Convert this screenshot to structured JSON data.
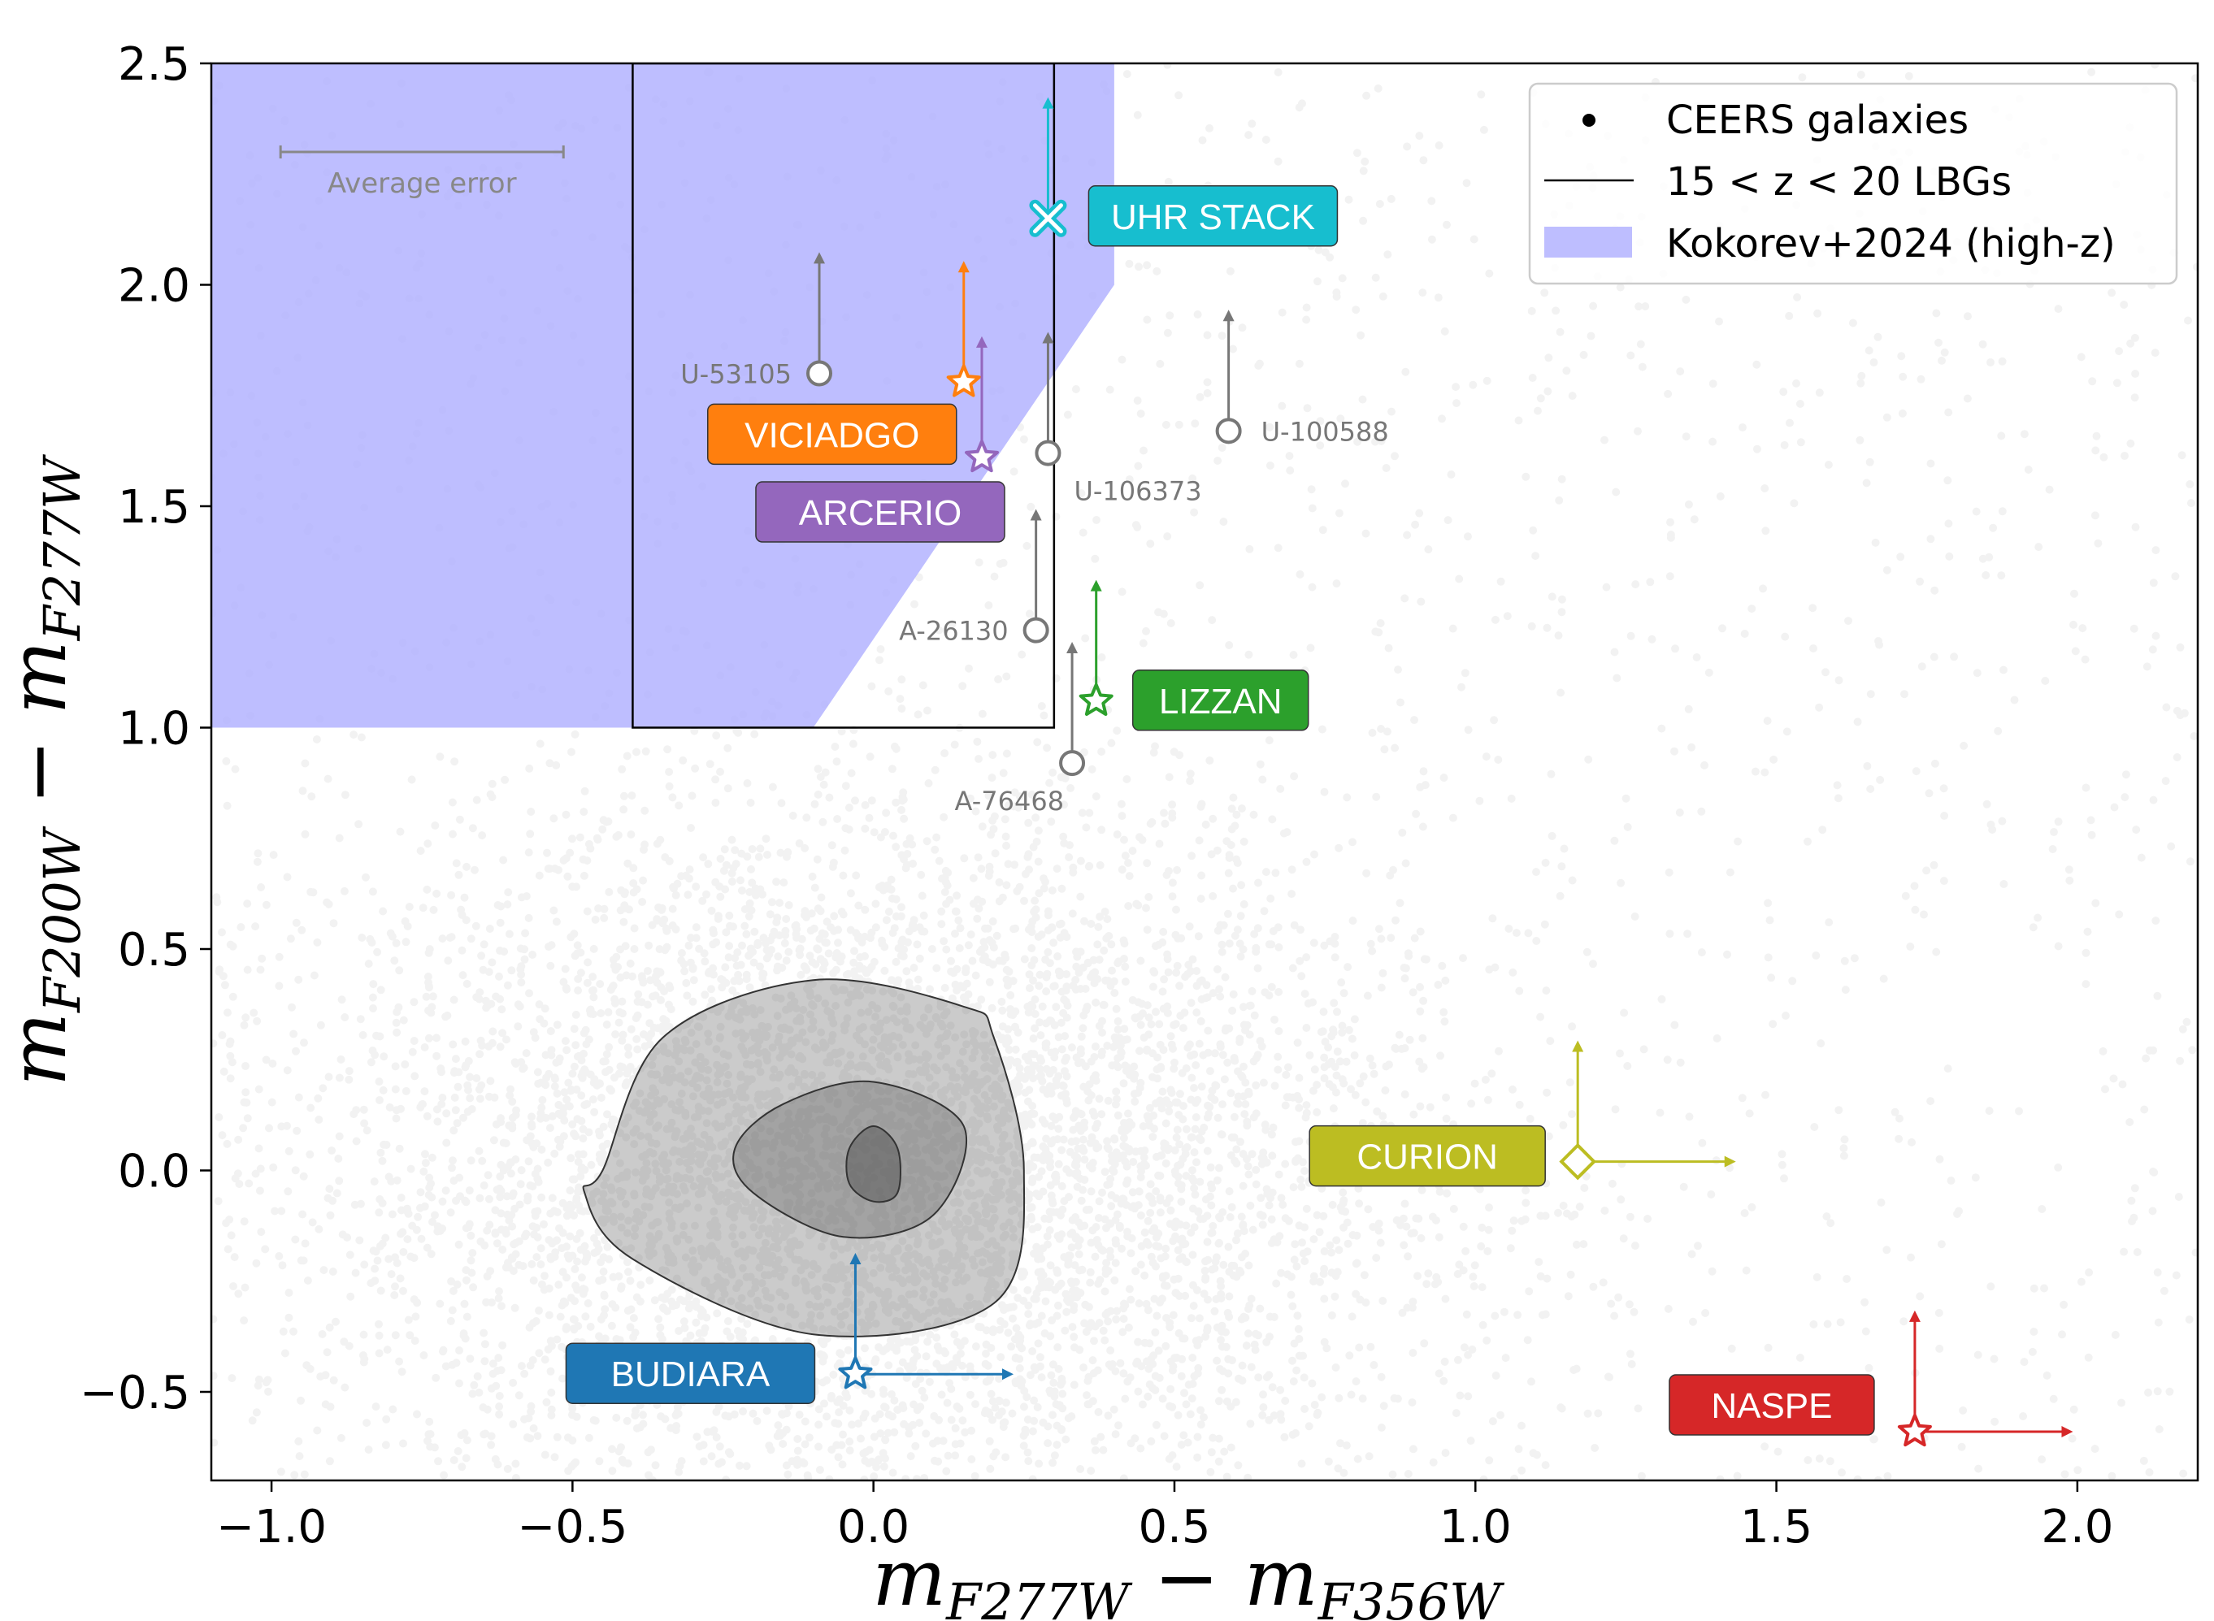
{
  "chart_data": {
    "type": "scatter",
    "title": "",
    "xlabel": {
      "base": "m",
      "sub1": "F277W",
      "minus": " − ",
      "base2": "m",
      "sub2": "F356W"
    },
    "ylabel": {
      "base": "m",
      "sub1": "F200W",
      "minus": " − ",
      "base2": "m",
      "sub2": "F277W"
    },
    "xlim": [
      -1.1,
      2.2
    ],
    "ylim": [
      -0.7,
      2.5
    ],
    "xticks": [
      -1.0,
      -0.5,
      0.0,
      0.5,
      1.0,
      1.5,
      2.0
    ],
    "xtick_labels": [
      "−1.0",
      "−0.5",
      "0.0",
      "0.5",
      "1.0",
      "1.5",
      "2.0"
    ],
    "yticks": [
      -0.5,
      0.0,
      0.5,
      1.0,
      1.5,
      2.0,
      2.5
    ],
    "ytick_labels": [
      "−0.5",
      "0.0",
      "0.5",
      "1.0",
      "1.5",
      "2.0",
      "2.5"
    ],
    "background": {
      "name": "CEERS galaxies",
      "center": [
        0.0,
        0.0
      ],
      "spread": [
        0.45,
        0.4
      ],
      "contours": [
        [
          [
            -0.45,
            0.0
          ],
          [
            -0.35,
            0.3
          ],
          [
            -0.1,
            0.43
          ],
          [
            0.15,
            0.37
          ],
          [
            0.2,
            0.3
          ],
          [
            0.25,
            0.0
          ],
          [
            0.2,
            -0.3
          ],
          [
            -0.1,
            -0.37
          ],
          [
            -0.4,
            -0.2
          ],
          [
            -0.48,
            -0.05
          ]
        ],
        [
          [
            -0.23,
            0.05
          ],
          [
            -0.15,
            0.15
          ],
          [
            0.0,
            0.2
          ],
          [
            0.15,
            0.1
          ],
          [
            0.1,
            -0.1
          ],
          [
            -0.05,
            -0.15
          ],
          [
            -0.2,
            -0.05
          ]
        ],
        [
          [
            -0.04,
            0.05
          ],
          [
            0.0,
            0.1
          ],
          [
            0.04,
            0.05
          ],
          [
            0.04,
            -0.05
          ],
          [
            0.0,
            -0.07
          ],
          [
            -0.04,
            -0.03
          ]
        ]
      ]
    },
    "selection_box": {
      "name": "15 < z < 20 LBGs",
      "x": [
        -0.4,
        0.3
      ],
      "y": [
        1.0,
        2.5
      ]
    },
    "shaded_region": {
      "name": "Kokorev+2024 (high-z)",
      "color": "#b3b3ff",
      "vertices": [
        [
          -1.1,
          1.0
        ],
        [
          -1.1,
          2.5
        ],
        [
          0.4,
          2.5
        ],
        [
          0.4,
          2.0
        ],
        [
          -0.1,
          1.0
        ]
      ]
    },
    "average_error": {
      "label": "Average error",
      "x_center": -0.75,
      "y": 2.3,
      "half_width": 0.235
    },
    "gray_objects": [
      {
        "name": "U-53105",
        "x": -0.09,
        "y": 1.8,
        "arrow_top": 2.07,
        "label_pos": "left"
      },
      {
        "name": "U-100588",
        "x": 0.59,
        "y": 1.67,
        "arrow_top": 1.94,
        "label_pos": "right"
      },
      {
        "name": "U-106373",
        "x": 0.29,
        "y": 1.62,
        "arrow_top": 1.89,
        "label_pos": "below-right"
      },
      {
        "name": "A-26130",
        "x": 0.27,
        "y": 1.22,
        "arrow_top": 1.49,
        "label_pos": "left"
      },
      {
        "name": "A-76468",
        "x": 0.33,
        "y": 0.92,
        "arrow_top": 1.19,
        "label_pos": "below-left"
      }
    ],
    "highlighted": [
      {
        "name": "UHR STACK",
        "x": 0.29,
        "y": 2.15,
        "marker": "x",
        "color": "#17becf",
        "up_to": 2.42
      },
      {
        "name": "VICIADGO",
        "x": 0.15,
        "y": 1.78,
        "marker": "star",
        "color": "#ff7f0e",
        "up_to": 2.05
      },
      {
        "name": "ARCERIO",
        "x": 0.18,
        "y": 1.61,
        "marker": "star",
        "color": "#9467bd",
        "up_to": 1.88
      },
      {
        "name": "LIZZAN",
        "x": 0.37,
        "y": 1.06,
        "marker": "star",
        "color": "#2ca02c",
        "up_to": 1.33
      },
      {
        "name": "CURION",
        "x": 1.17,
        "y": 0.02,
        "marker": "diamond",
        "color": "#bcbd22",
        "up_to": 0.29,
        "right_to": 1.43
      },
      {
        "name": "BUDIARA",
        "x": -0.03,
        "y": -0.46,
        "marker": "star",
        "color": "#1f77b4",
        "up_to": -0.19,
        "right_to": 0.23
      },
      {
        "name": "NASPE",
        "x": 1.73,
        "y": -0.59,
        "marker": "star",
        "color": "#d62728",
        "up_to": -0.32,
        "right_to": 1.99
      }
    ],
    "legend": {
      "position": "top-right",
      "entries": [
        "CEERS galaxies",
        "15 < z < 20 LBGs",
        "Kokorev+2024 (high-z)"
      ]
    }
  }
}
